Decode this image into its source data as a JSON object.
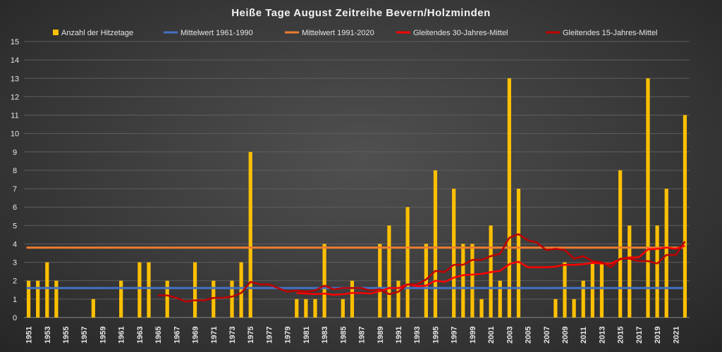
{
  "chart_data": {
    "type": "bar",
    "title": "Heiße Tage August Zeitreihe Bevern/Holzminden",
    "xlabel": "",
    "ylabel": "",
    "ylim": [
      0,
      15
    ],
    "yticks": [
      0,
      1,
      2,
      3,
      4,
      5,
      6,
      7,
      8,
      9,
      10,
      11,
      12,
      13,
      14,
      15
    ],
    "grid": true,
    "legend_position": "top",
    "first_year": 1951,
    "categories": [
      1951,
      1952,
      1953,
      1954,
      1955,
      1956,
      1957,
      1958,
      1959,
      1960,
      1961,
      1962,
      1963,
      1964,
      1965,
      1966,
      1967,
      1968,
      1969,
      1970,
      1971,
      1972,
      1973,
      1974,
      1975,
      1976,
      1977,
      1978,
      1979,
      1980,
      1981,
      1982,
      1983,
      1984,
      1985,
      1986,
      1987,
      1988,
      1989,
      1990,
      1991,
      1992,
      1993,
      1994,
      1995,
      1996,
      1997,
      1998,
      1999,
      2000,
      2001,
      2002,
      2003,
      2004,
      2005,
      2006,
      2007,
      2008,
      2009,
      2010,
      2011,
      2012,
      2013,
      2014,
      2015,
      2016,
      2017,
      2018,
      2019,
      2020,
      2021,
      2022
    ],
    "series": [
      {
        "name": "Anzahl der Hitzetage",
        "type": "bar",
        "color": "#ffc000",
        "values": [
          2,
          2,
          3,
          2,
          0,
          0,
          0,
          1,
          0,
          0,
          2,
          0,
          3,
          3,
          0,
          2,
          0,
          0,
          3,
          0,
          2,
          0,
          2,
          3,
          9,
          0,
          0,
          0,
          0,
          1,
          1,
          1,
          4,
          0,
          1,
          2,
          0,
          0,
          4,
          5,
          2,
          6,
          0,
          4,
          8,
          0,
          7,
          4,
          4,
          1,
          5,
          2,
          13,
          7,
          0,
          0,
          0,
          1,
          3,
          1,
          2,
          3,
          3,
          0,
          8,
          5,
          0,
          13,
          5,
          7,
          0,
          11
        ]
      },
      {
        "name": "Mittelwert 1961-1990",
        "type": "hline",
        "color": "#4472c4",
        "value": 1.6
      },
      {
        "name": "Mittelwert 1991-2020",
        "type": "hline",
        "color": "#ed7d31",
        "value": 3.8
      },
      {
        "name": "Gleitendes 30-Jahres-Mittel",
        "type": "moving_average",
        "window": 30,
        "color": "#ff0000"
      },
      {
        "name": "Gleitendes 15-Jahres-Mittel",
        "type": "moving_average",
        "window": 15,
        "color": "#c00000"
      }
    ]
  }
}
